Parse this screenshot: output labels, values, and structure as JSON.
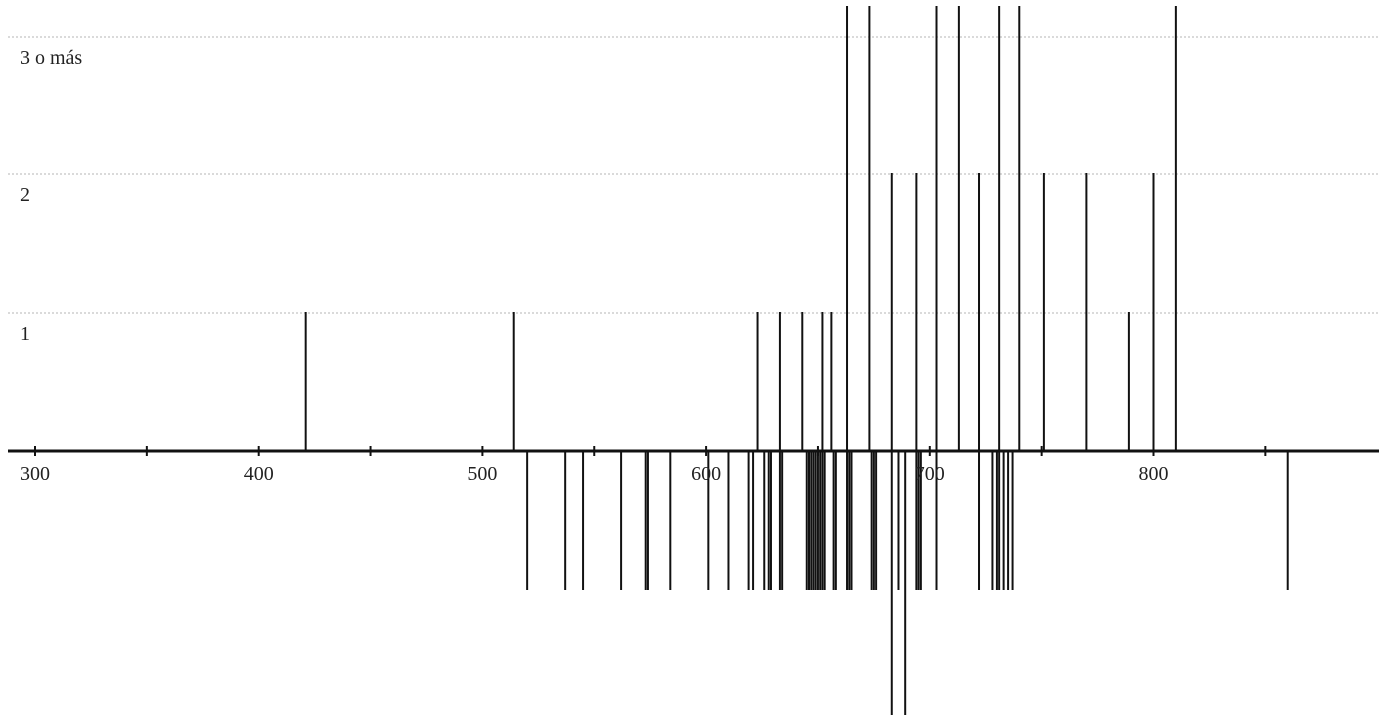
{
  "chart_data": {
    "type": "bar",
    "title": "",
    "xlabel": "",
    "ylabel": "",
    "xlim": [
      287,
      899
    ],
    "x_ticks": [
      300,
      400,
      500,
      600,
      700,
      800
    ],
    "x_minor_ticks": [
      350,
      450,
      550,
      650,
      750,
      850
    ],
    "x_tick_labels": [
      "300",
      "400",
      "500",
      "600",
      "700",
      "800"
    ],
    "y_levels": [
      {
        "value": 1,
        "label": "1"
      },
      {
        "value": 2,
        "label": "2"
      },
      {
        "value": 3,
        "label": "3 o más"
      }
    ],
    "ylim": [
      -2,
      3
    ],
    "grid": true,
    "series": [
      {
        "direction": "up",
        "values": [
          {
            "x": 421,
            "y": 1
          },
          {
            "x": 514,
            "y": 1
          },
          {
            "x": 623,
            "y": 1
          },
          {
            "x": 633,
            "y": 1
          },
          {
            "x": 643,
            "y": 1
          },
          {
            "x": 652,
            "y": 1
          },
          {
            "x": 656,
            "y": 1
          },
          {
            "x": 663,
            "y": 3
          },
          {
            "x": 673,
            "y": 3
          },
          {
            "x": 683,
            "y": 2
          },
          {
            "x": 694,
            "y": 2
          },
          {
            "x": 703,
            "y": 3
          },
          {
            "x": 713,
            "y": 3
          },
          {
            "x": 722,
            "y": 2
          },
          {
            "x": 731,
            "y": 3
          },
          {
            "x": 740,
            "y": 3
          },
          {
            "x": 751,
            "y": 2
          },
          {
            "x": 770,
            "y": 2
          },
          {
            "x": 789,
            "y": 1
          },
          {
            "x": 800,
            "y": 2
          },
          {
            "x": 810,
            "y": 3
          }
        ]
      },
      {
        "direction": "down",
        "values": [
          {
            "x": 520,
            "y": -1
          },
          {
            "x": 537,
            "y": -1
          },
          {
            "x": 545,
            "y": -1
          },
          {
            "x": 562,
            "y": -1
          },
          {
            "x": 573,
            "y": -1
          },
          {
            "x": 574,
            "y": -1
          },
          {
            "x": 584,
            "y": -1
          },
          {
            "x": 601,
            "y": -1
          },
          {
            "x": 610,
            "y": -1
          },
          {
            "x": 619,
            "y": -1
          },
          {
            "x": 621,
            "y": -1
          },
          {
            "x": 626,
            "y": -1
          },
          {
            "x": 628,
            "y": -1
          },
          {
            "x": 629,
            "y": -1
          },
          {
            "x": 633,
            "y": -1
          },
          {
            "x": 634,
            "y": -1
          },
          {
            "x": 645,
            "y": -1
          },
          {
            "x": 646,
            "y": -1
          },
          {
            "x": 647,
            "y": -1
          },
          {
            "x": 648,
            "y": -1
          },
          {
            "x": 649,
            "y": -1
          },
          {
            "x": 650,
            "y": -1
          },
          {
            "x": 651,
            "y": -1
          },
          {
            "x": 652,
            "y": -1
          },
          {
            "x": 653,
            "y": -1
          },
          {
            "x": 657,
            "y": -1
          },
          {
            "x": 658,
            "y": -1
          },
          {
            "x": 663,
            "y": -1
          },
          {
            "x": 664,
            "y": -1
          },
          {
            "x": 665,
            "y": -1
          },
          {
            "x": 674,
            "y": -1
          },
          {
            "x": 675,
            "y": -1
          },
          {
            "x": 676,
            "y": -1
          },
          {
            "x": 683,
            "y": -2
          },
          {
            "x": 686,
            "y": -1
          },
          {
            "x": 689,
            "y": -2
          },
          {
            "x": 694,
            "y": -1
          },
          {
            "x": 695,
            "y": -1
          },
          {
            "x": 696,
            "y": -1
          },
          {
            "x": 703,
            "y": -1
          },
          {
            "x": 722,
            "y": -1
          },
          {
            "x": 728,
            "y": -1
          },
          {
            "x": 730,
            "y": -1
          },
          {
            "x": 731,
            "y": -1
          },
          {
            "x": 733,
            "y": -1
          },
          {
            "x": 735,
            "y": -1
          },
          {
            "x": 737,
            "y": -1
          },
          {
            "x": 860,
            "y": -1
          }
        ]
      }
    ]
  },
  "colors": {
    "background": "#ffffff",
    "line": "#111111",
    "grid": "#b5b5b5",
    "text": "#222222"
  }
}
